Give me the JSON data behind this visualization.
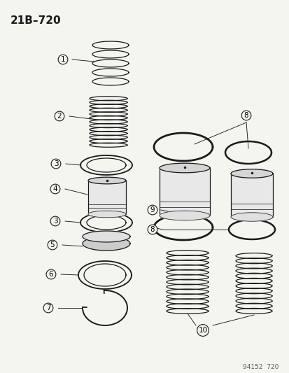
{
  "title": "21B–720",
  "footer": "94152  720",
  "bg_color": "#f5f5f0",
  "line_color": "#1a1a1a",
  "label_color": "#1a1a1a",
  "figw": 4.14,
  "figh": 5.33,
  "dpi": 100
}
